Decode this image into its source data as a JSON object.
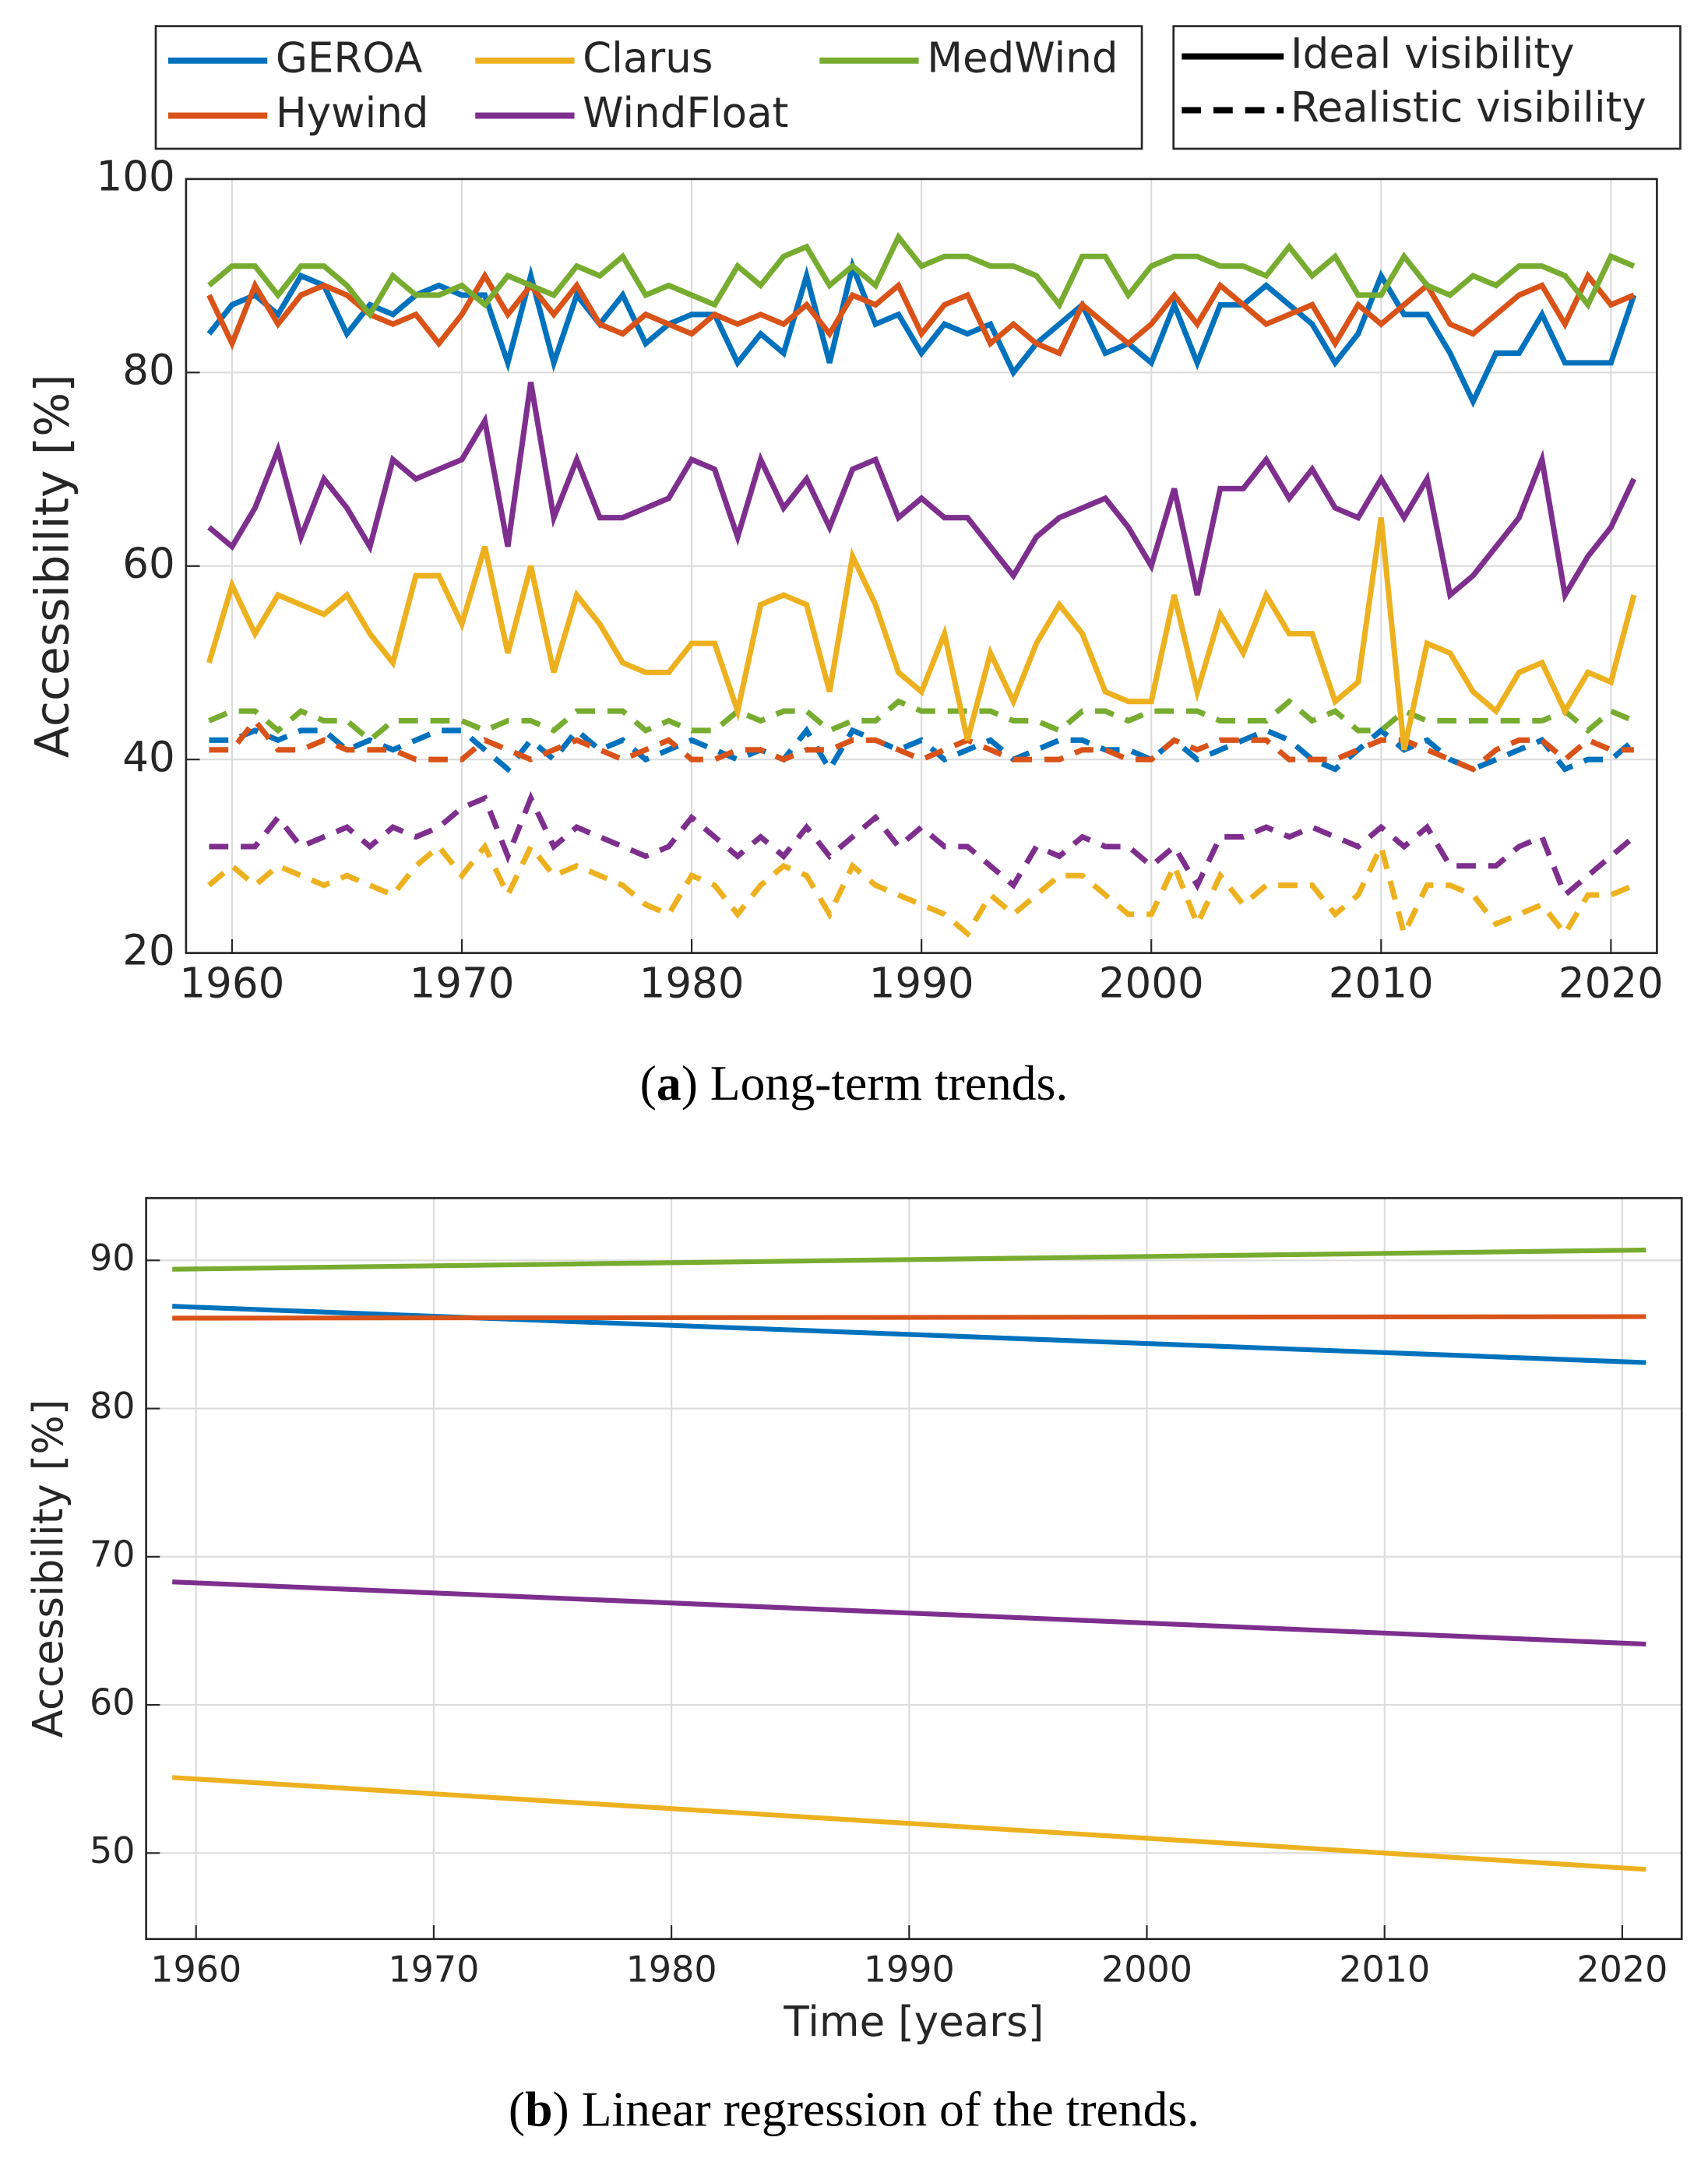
{
  "chart_data": [
    {
      "type": "line",
      "caption": [
        "(",
        "a",
        ") Long-term trends."
      ],
      "ylabel": "Accessibility [%]",
      "x": [
        1959,
        1960,
        1961,
        1962,
        1963,
        1964,
        1965,
        1966,
        1967,
        1968,
        1969,
        1970,
        1971,
        1972,
        1973,
        1974,
        1975,
        1976,
        1977,
        1978,
        1979,
        1980,
        1981,
        1982,
        1983,
        1984,
        1985,
        1986,
        1987,
        1988,
        1989,
        1990,
        1991,
        1992,
        1993,
        1994,
        1995,
        1996,
        1997,
        1998,
        1999,
        2000,
        2001,
        2002,
        2003,
        2004,
        2005,
        2006,
        2007,
        2008,
        2009,
        2010,
        2011,
        2012,
        2013,
        2014,
        2015,
        2016,
        2017,
        2018,
        2019,
        2020,
        2021
      ],
      "xlim": [
        1958,
        2022
      ],
      "xticks": [
        1960,
        1970,
        1980,
        1990,
        2000,
        2010,
        2020
      ],
      "ylim": [
        20,
        100
      ],
      "yticks": [
        20,
        40,
        60,
        80,
        100
      ],
      "grid": true,
      "legend": true,
      "line_styles": [
        {
          "name": "Ideal visibility",
          "key": "values",
          "dash": false
        },
        {
          "name": "Realistic visibility",
          "key": "values_realistic",
          "dash": true
        }
      ],
      "series": [
        {
          "name": "GEROA",
          "color": "#0072BD",
          "values": [
            84,
            87,
            88,
            86,
            90,
            89,
            84,
            87,
            86,
            88,
            89,
            88,
            88,
            81,
            90,
            81,
            88,
            85,
            88,
            83,
            85,
            86,
            86,
            81,
            84,
            82,
            90,
            81,
            91,
            85,
            86,
            82,
            85,
            84,
            85,
            80,
            83,
            85,
            87,
            82,
            83,
            81,
            87,
            81,
            87,
            87,
            89,
            87,
            85,
            81,
            84,
            90,
            86,
            86,
            82,
            77,
            82,
            82,
            86,
            81,
            81,
            81,
            88
          ],
          "values_realistic": [
            42,
            42,
            43,
            42,
            43,
            43,
            41,
            42,
            41,
            42,
            43,
            43,
            41,
            39,
            42,
            40,
            43,
            41,
            42,
            40,
            41,
            42,
            41,
            40,
            41,
            40,
            43,
            39,
            43,
            42,
            41,
            42,
            40,
            41,
            42,
            40,
            41,
            42,
            42,
            41,
            41,
            40,
            42,
            40,
            41,
            42,
            43,
            42,
            40,
            39,
            41,
            43,
            41,
            42,
            40,
            39,
            40,
            41,
            42,
            39,
            40,
            40,
            42
          ]
        },
        {
          "name": "Hywind",
          "color": "#D95319",
          "values": [
            88,
            83,
            89,
            85,
            88,
            89,
            88,
            86,
            85,
            86,
            83,
            86,
            90,
            86,
            89,
            86,
            89,
            85,
            84,
            86,
            85,
            84,
            86,
            85,
            86,
            85,
            87,
            84,
            88,
            87,
            89,
            84,
            87,
            88,
            83,
            85,
            83,
            82,
            87,
            85,
            83,
            85,
            88,
            85,
            89,
            87,
            85,
            86,
            87,
            83,
            87,
            85,
            87,
            89,
            85,
            84,
            86,
            88,
            89,
            85,
            90,
            87,
            88
          ],
          "values_realistic": [
            41,
            41,
            44,
            41,
            41,
            42,
            41,
            41,
            41,
            40,
            40,
            40,
            42,
            41,
            40,
            41,
            42,
            41,
            40,
            41,
            42,
            40,
            40,
            41,
            41,
            40,
            41,
            41,
            42,
            42,
            41,
            40,
            41,
            42,
            41,
            40,
            40,
            40,
            41,
            41,
            40,
            40,
            42,
            41,
            42,
            42,
            42,
            40,
            40,
            40,
            41,
            42,
            42,
            41,
            40,
            39,
            41,
            42,
            42,
            40,
            42,
            41,
            41
          ]
        },
        {
          "name": "Clarus",
          "color": "#EDB120",
          "values": [
            50,
            58,
            53,
            57,
            56,
            55,
            57,
            53,
            50,
            59,
            59,
            54,
            62,
            51,
            60,
            49,
            57,
            54,
            50,
            49,
            49,
            52,
            52,
            45,
            56,
            57,
            56,
            47,
            61,
            56,
            49,
            47,
            53,
            42,
            51,
            46,
            52,
            56,
            53,
            47,
            46,
            46,
            57,
            47,
            55,
            51,
            57,
            53,
            53,
            46,
            48,
            65,
            41,
            52,
            51,
            47,
            45,
            49,
            50,
            45,
            49,
            48,
            57
          ],
          "values_realistic": [
            27,
            29,
            27,
            29,
            28,
            27,
            28,
            27,
            26,
            29,
            31,
            28,
            31,
            26,
            31,
            28,
            29,
            28,
            27,
            25,
            24,
            28,
            27,
            24,
            27,
            29,
            28,
            24,
            29,
            27,
            26,
            25,
            24,
            22,
            26,
            24,
            26,
            28,
            28,
            26,
            24,
            24,
            29,
            23,
            28,
            25,
            27,
            27,
            27,
            24,
            26,
            31,
            22,
            27,
            27,
            26,
            23,
            24,
            25,
            22,
            26,
            26,
            27
          ]
        },
        {
          "name": "WindFloat",
          "color": "#7E2F8E",
          "values": [
            64,
            62,
            66,
            72,
            63,
            69,
            66,
            62,
            71,
            69,
            70,
            71,
            75,
            62,
            79,
            65,
            71,
            65,
            65,
            66,
            67,
            71,
            70,
            63,
            71,
            66,
            69,
            64,
            70,
            71,
            65,
            67,
            65,
            65,
            62,
            59,
            63,
            65,
            66,
            67,
            64,
            60,
            68,
            57,
            68,
            68,
            71,
            67,
            70,
            66,
            65,
            69,
            65,
            69,
            57,
            59,
            62,
            65,
            71,
            57,
            61,
            64,
            69
          ],
          "values_realistic": [
            31,
            31,
            31,
            34,
            31,
            32,
            33,
            31,
            33,
            32,
            33,
            35,
            36,
            30,
            36,
            31,
            33,
            32,
            31,
            30,
            31,
            34,
            32,
            30,
            32,
            30,
            33,
            30,
            32,
            34,
            31,
            33,
            31,
            31,
            29,
            27,
            31,
            30,
            32,
            31,
            31,
            29,
            31,
            27,
            32,
            32,
            33,
            32,
            33,
            32,
            31,
            33,
            31,
            33,
            29,
            29,
            29,
            31,
            32,
            26,
            28,
            30,
            32
          ]
        },
        {
          "name": "MedWind",
          "color": "#77AC30",
          "values": [
            89,
            91,
            91,
            88,
            91,
            91,
            89,
            86,
            90,
            88,
            88,
            89,
            87,
            90,
            89,
            88,
            91,
            90,
            92,
            88,
            89,
            88,
            87,
            91,
            89,
            92,
            93,
            89,
            91,
            89,
            94,
            91,
            92,
            92,
            91,
            91,
            90,
            87,
            92,
            92,
            88,
            91,
            92,
            92,
            91,
            91,
            90,
            93,
            90,
            92,
            88,
            88,
            92,
            89,
            88,
            90,
            89,
            91,
            91,
            90,
            87,
            92,
            91
          ],
          "values_realistic": [
            44,
            45,
            45,
            43,
            45,
            44,
            44,
            42,
            44,
            44,
            44,
            44,
            43,
            44,
            44,
            43,
            45,
            45,
            45,
            43,
            44,
            43,
            43,
            45,
            44,
            45,
            45,
            43,
            44,
            44,
            46,
            45,
            45,
            45,
            45,
            44,
            44,
            43,
            45,
            45,
            44,
            45,
            45,
            45,
            44,
            44,
            44,
            46,
            44,
            45,
            43,
            43,
            45,
            44,
            44,
            44,
            44,
            44,
            44,
            45,
            43,
            45,
            44
          ]
        }
      ]
    },
    {
      "type": "line",
      "caption": [
        "(",
        "b",
        ") Linear regression of the trends."
      ],
      "xlabel": "Time [years]",
      "ylabel": "Accessibility [%]",
      "x": [
        1959,
        2021
      ],
      "xlim": [
        1957.9,
        2022.5
      ],
      "xticks": [
        1960,
        1970,
        1980,
        1990,
        2000,
        2010,
        2020
      ],
      "ylim": [
        44.2,
        94.2
      ],
      "yticks": [
        50,
        60,
        70,
        80,
        90
      ],
      "grid": true,
      "legend": false,
      "series": [
        {
          "name": "GEROA",
          "color": "#0072BD",
          "values": [
            86.9,
            83.1
          ]
        },
        {
          "name": "Hywind",
          "color": "#D95319",
          "values": [
            86.1,
            86.2
          ]
        },
        {
          "name": "Clarus",
          "color": "#EDB120",
          "values": [
            55.1,
            48.9
          ]
        },
        {
          "name": "WindFloat",
          "color": "#7E2F8E",
          "values": [
            68.3,
            64.1
          ]
        },
        {
          "name": "MedWind",
          "color": "#77AC30",
          "values": [
            89.4,
            90.7
          ]
        }
      ]
    }
  ]
}
